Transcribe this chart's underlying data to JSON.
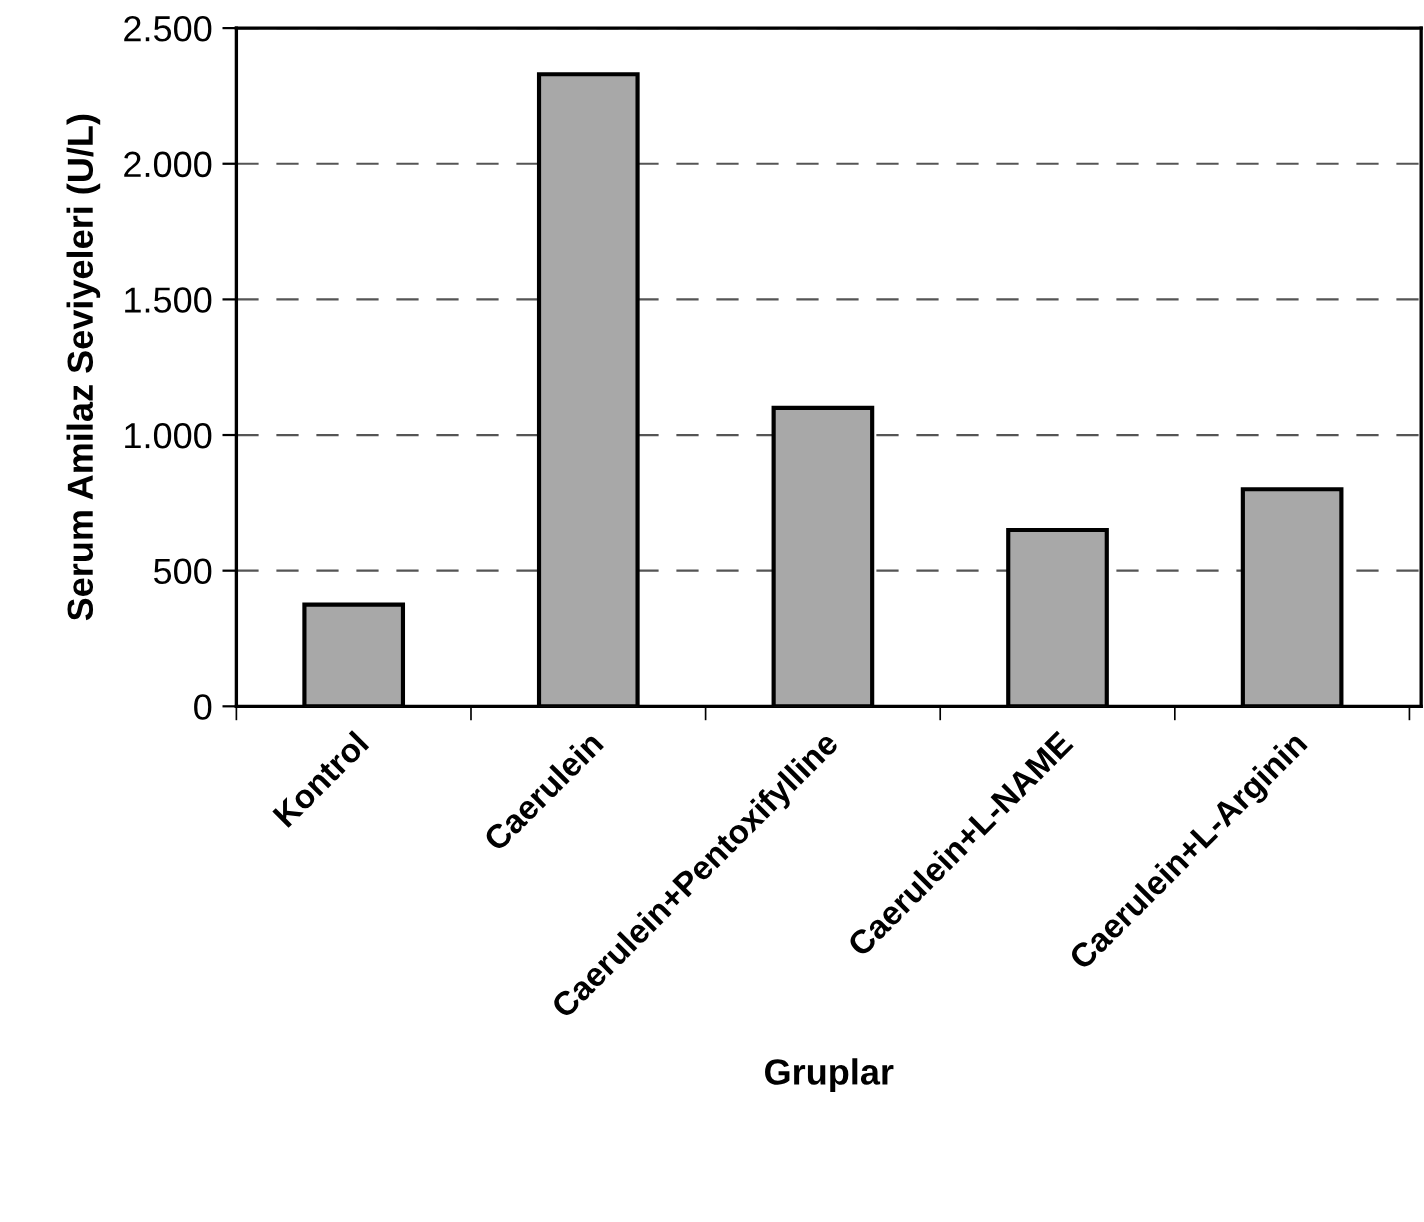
{
  "chart_data": {
    "type": "bar",
    "xlabel": "Gruplar",
    "ylabel": "Serum Amilaz Seviyeleri (U/L)",
    "categories": [
      "Kontrol",
      "Caerulein",
      "Caerulein+Pentoxifylline",
      "Caerulein+L-NAME",
      "Caerulein+L-Arginin"
    ],
    "values": [
      375,
      2330,
      1100,
      650,
      800
    ],
    "color": "#a8a8a8",
    "ylim": [
      0,
      2500
    ],
    "yticks": [
      0,
      {
        "value": 500,
        "label": "500"
      },
      {
        "value": 1000,
        "label": "1.000"
      },
      {
        "value": 1500,
        "label": "1.500"
      },
      {
        "value": 2000,
        "label": "2.000"
      },
      {
        "value": 2500,
        "label": "2.500"
      }
    ],
    "grid": "y"
  }
}
